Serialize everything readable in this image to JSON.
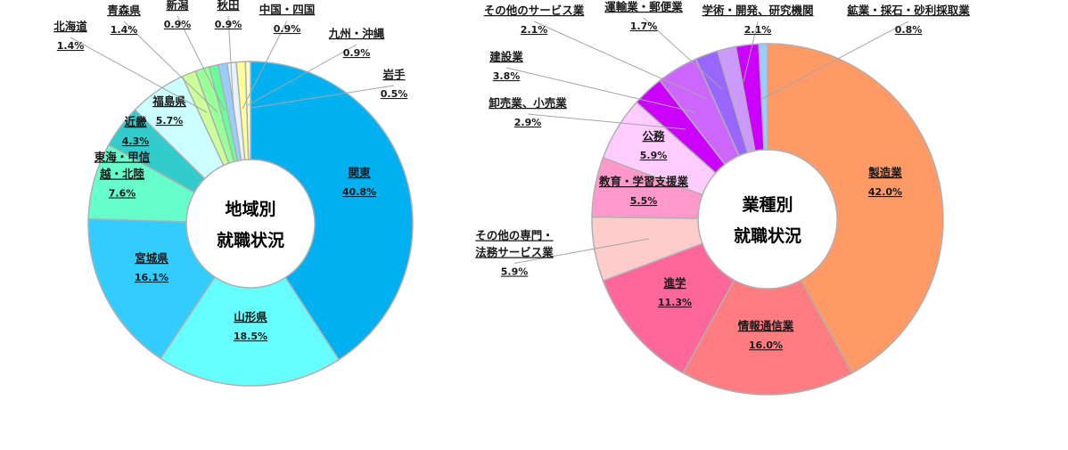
{
  "chart_data": [
    {
      "type": "pie",
      "donut": true,
      "title_lines": [
        "地域別",
        "就職状況"
      ],
      "unit": "%",
      "slices": [
        {
          "name": "関東",
          "value": 40.8,
          "color": "#00b0f0"
        },
        {
          "name": "山形県",
          "value": 18.5,
          "color": "#66ffff"
        },
        {
          "name": "宮城県",
          "value": 16.1,
          "color": "#33ccff"
        },
        {
          "name": "東海・甲信越・北陸",
          "name_lines": [
            "東海・甲信",
            "越・北陸"
          ],
          "value": 7.6,
          "color": "#66ffcc"
        },
        {
          "name": "近畿",
          "value": 4.3,
          "color": "#33cccc"
        },
        {
          "name": "福島県",
          "value": 5.7,
          "color": "#ccffff"
        },
        {
          "name": "北海道",
          "value": 1.4,
          "color": "#ccff99"
        },
        {
          "name": "青森県",
          "value": 1.4,
          "color": "#99ff99"
        },
        {
          "name": "新潟",
          "value": 0.9,
          "color": "#66ff99"
        },
        {
          "name": "秋田",
          "value": 0.9,
          "color": "#99ccff"
        },
        {
          "name": "中国・四国",
          "value": 0.9,
          "color": "#e6f2ff"
        },
        {
          "name": "九州・沖縄",
          "value": 0.9,
          "color": "#ffff99"
        },
        {
          "name": "岩手",
          "value": 0.5,
          "color": "#ffffcc"
        }
      ]
    },
    {
      "type": "pie",
      "donut": true,
      "title_lines": [
        "業種別",
        "就職状況"
      ],
      "unit": "%",
      "slices": [
        {
          "name": "製造業",
          "value": 42.0,
          "color": "#ff9966"
        },
        {
          "name": "情報通信業",
          "value": 16.0,
          "color": "#ff7c80"
        },
        {
          "name": "進学",
          "value": 11.3,
          "color": "#ff6699"
        },
        {
          "name": "その他の専門・法務サービス業",
          "name_lines": [
            "その他の専門・",
            "法務サービス業"
          ],
          "value": 5.9,
          "color": "#ffcccc"
        },
        {
          "name": "教育・学習支援業",
          "value": 5.5,
          "color": "#ff99cc"
        },
        {
          "name": "公務",
          "value": 5.9,
          "color": "#ffccff"
        },
        {
          "name": "卸売業、小売業",
          "value": 2.9,
          "color": "#cc00ff"
        },
        {
          "name": "建設業",
          "value": 3.8,
          "color": "#cc66ff"
        },
        {
          "name": "その他のサービス業",
          "value": 2.1,
          "color": "#9966ff"
        },
        {
          "name": "運輸業・郵便業",
          "value": 1.7,
          "color": "#cc99ff"
        },
        {
          "name": "学術・開発、研究機関",
          "value": 2.1,
          "color": "#cc00ff"
        },
        {
          "name": "鉱業・採石・砂利採取業",
          "value": 0.8,
          "color": "#99ccff"
        }
      ]
    }
  ]
}
